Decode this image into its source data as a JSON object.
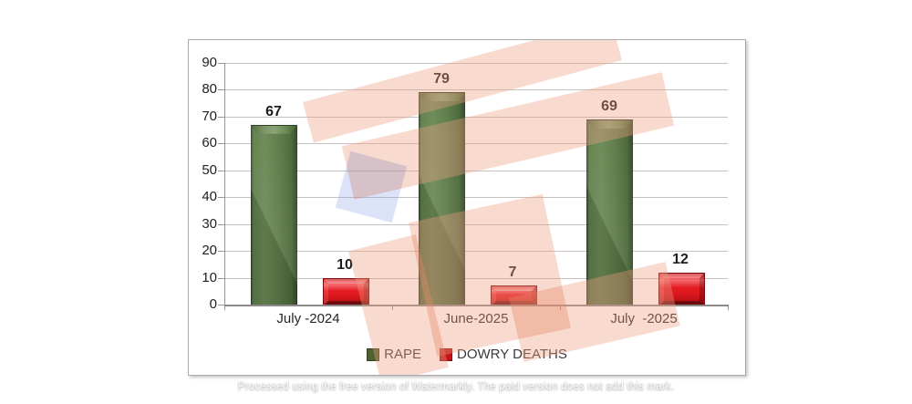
{
  "chart_data": {
    "type": "bar",
    "title": "",
    "categories": [
      "July -2024",
      "June-2025",
      "July  -2025"
    ],
    "series": [
      {
        "name": "RAPE",
        "color": "#4e612e",
        "values": [
          67,
          79,
          69
        ]
      },
      {
        "name": "DOWRY DEATHS",
        "color": "#c41417",
        "values": [
          10,
          7,
          12
        ]
      }
    ],
    "ylim": [
      0,
      90
    ],
    "yticks": [
      0,
      10,
      20,
      30,
      40,
      50,
      60,
      70,
      80,
      90
    ],
    "grid": true,
    "legend_position": "bottom",
    "bar_value_labels": [
      67,
      10,
      79,
      7,
      69,
      12
    ]
  },
  "colors": {
    "rape_bar": "#5d7c49",
    "dowry_bar": "#e41b22",
    "gridline": "#c6c0c0",
    "watermark_salmon": "#f9dfd4",
    "watermark_blue": "#dce2f7"
  },
  "footer": {
    "watermark_text": "Processed using the free version of Watermarkly. The paid version does not add this mark."
  }
}
